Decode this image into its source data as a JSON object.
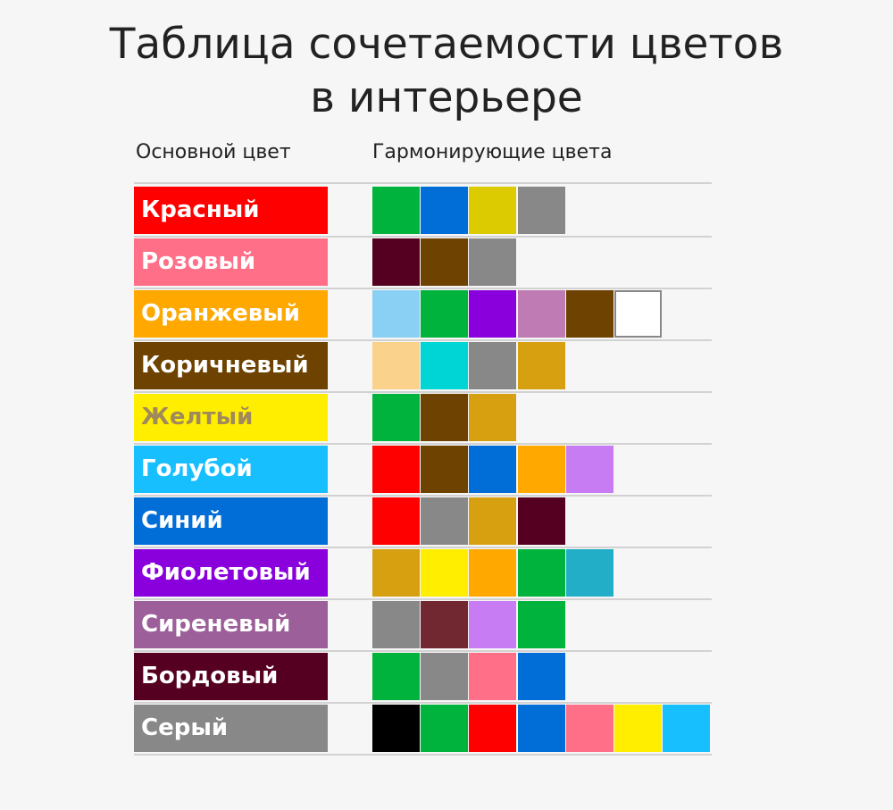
{
  "title": {
    "line1": "Таблица сочетаемости цветов",
    "line2": "в интерьере"
  },
  "headers": {
    "main": "Основной цвет",
    "harmonizing": "Гармонирующие цвета"
  },
  "rows": [
    {
      "label": "Красный",
      "color": "#ff0000",
      "text_color": "#ffffff",
      "swatches": [
        "#00b33c",
        "#006ed6",
        "#dccb00",
        "#888888"
      ]
    },
    {
      "label": "Розовый",
      "color": "#ff6f88",
      "text_color": "#ffffff",
      "swatches": [
        "#550020",
        "#6e4200",
        "#888888"
      ]
    },
    {
      "label": "Оранжевый",
      "color": "#ffa800",
      "text_color": "#ffffff",
      "swatches": [
        "#8ad0f5",
        "#00b33c",
        "#8a00dc",
        "#be7bb4",
        "#6e4200",
        "#ffffff"
      ]
    },
    {
      "label": "Коричневый",
      "color": "#6e4200",
      "text_color": "#ffffff",
      "swatches": [
        "#fbd28c",
        "#00d5d5",
        "#888888",
        "#d6a010"
      ]
    },
    {
      "label": "Желтый",
      "color": "#ffee00",
      "text_color": "#a08a5a",
      "swatches": [
        "#00b33c",
        "#6e4200",
        "#d6a010"
      ]
    },
    {
      "label": "Голубой",
      "color": "#17bfff",
      "text_color": "#ffffff",
      "swatches": [
        "#ff0000",
        "#6e4200",
        "#006ed6",
        "#ffa800",
        "#c77cf4"
      ]
    },
    {
      "label": "Синий",
      "color": "#006ed6",
      "text_color": "#ffffff",
      "swatches": [
        "#ff0000",
        "#888888",
        "#d6a010",
        "#550020"
      ]
    },
    {
      "label": "Фиолетовый",
      "color": "#8a00dc",
      "text_color": "#ffffff",
      "swatches": [
        "#d6a010",
        "#ffee00",
        "#ffa800",
        "#00b33c",
        "#23aec8"
      ]
    },
    {
      "label": "Сиреневый",
      "color": "#9c5f9a",
      "text_color": "#ffffff",
      "swatches": [
        "#888888",
        "#722830",
        "#c77cf4",
        "#00b33c"
      ]
    },
    {
      "label": "Бордовый",
      "color": "#550020",
      "text_color": "#ffffff",
      "swatches": [
        "#00b33c",
        "#888888",
        "#ff6f88",
        "#006ed6"
      ]
    },
    {
      "label": "Серый",
      "color": "#888888",
      "text_color": "#ffffff",
      "swatches": [
        "#000000",
        "#00b33c",
        "#ff0000",
        "#006ed6",
        "#ff6f88",
        "#ffee00",
        "#17bfff"
      ]
    }
  ]
}
